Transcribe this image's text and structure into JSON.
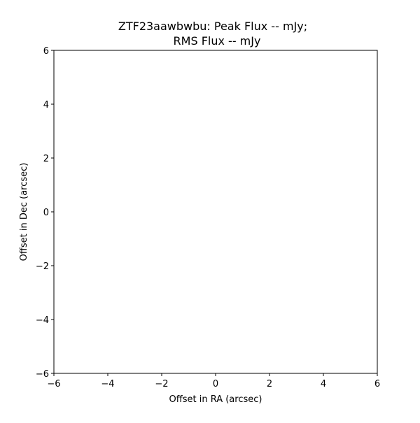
{
  "chart_data": {
    "type": "scatter",
    "title_line1": "ZTF23aawbwbu: Peak Flux -- mJy;",
    "title_line2": "RMS Flux -- mJy",
    "xlabel": "Offset in RA (arcsec)",
    "ylabel": "Offset in Dec (arcsec)",
    "xlim": [
      -6,
      6
    ],
    "ylim": [
      -6,
      6
    ],
    "xticks": [
      "−6",
      "−4",
      "−2",
      "0",
      "2",
      "4",
      "6"
    ],
    "yticks": [
      "−6",
      "−4",
      "−2",
      "0",
      "2",
      "4",
      "6"
    ],
    "grid": false,
    "series": []
  }
}
